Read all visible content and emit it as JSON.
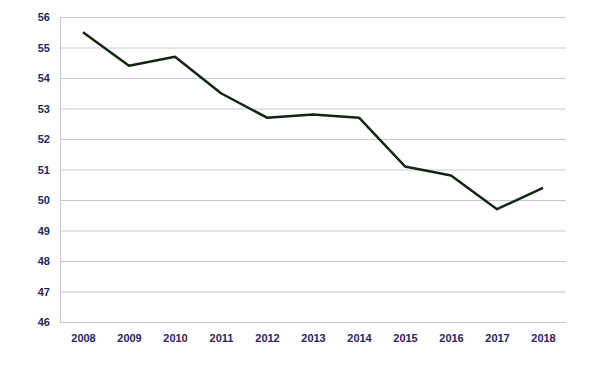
{
  "chart_data": {
    "type": "line",
    "categories": [
      "2008",
      "2009",
      "2010",
      "2011",
      "2012",
      "2013",
      "2014",
      "2015",
      "2016",
      "2017",
      "2018"
    ],
    "values": [
      55.5,
      54.4,
      54.7,
      53.5,
      52.7,
      52.8,
      52.7,
      51.1,
      50.8,
      49.7,
      50.4
    ],
    "color": "#142514",
    "ylim": [
      46,
      56
    ],
    "yticks": [
      46,
      47,
      48,
      49,
      50,
      51,
      52,
      53,
      54,
      55,
      56
    ],
    "grid": true
  }
}
